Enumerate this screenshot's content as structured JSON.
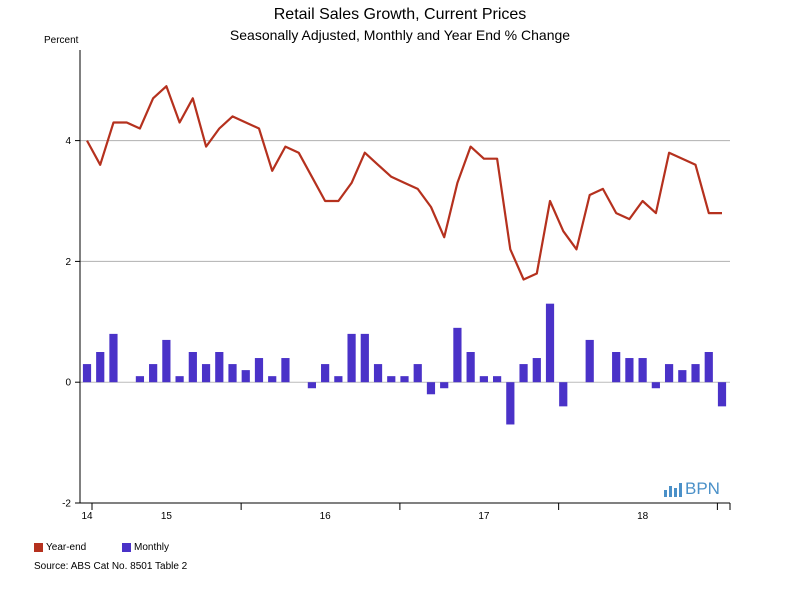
{
  "chart_data": {
    "type": "bar+line",
    "title": "Retail Sales Growth, Current Prices",
    "subtitle": "Seasonally Adjusted, Monthly and Year End % Change",
    "ylabel": "Percent",
    "ylim": [
      -2,
      5.5
    ],
    "yticks": [
      -2,
      0,
      2,
      4
    ],
    "xtick_labels": [
      "14",
      "15",
      "16",
      "17",
      "18"
    ],
    "grid": true,
    "legend_position": "bottom-left",
    "series": [
      {
        "name": "Year-end",
        "type": "line",
        "color": "#b5311e",
        "values": [
          4.0,
          3.6,
          4.3,
          4.3,
          4.2,
          4.7,
          4.9,
          4.3,
          4.7,
          3.9,
          4.2,
          4.4,
          4.3,
          4.2,
          3.5,
          3.9,
          3.8,
          3.4,
          3.0,
          3.0,
          3.3,
          3.8,
          3.6,
          3.4,
          3.3,
          3.2,
          2.9,
          2.4,
          3.3,
          3.9,
          3.7,
          3.7,
          2.2,
          1.7,
          1.8,
          3.0,
          2.5,
          2.2,
          3.1,
          3.2,
          2.8,
          2.7,
          3.0,
          2.8,
          3.8,
          3.7,
          3.6,
          2.8,
          2.8
        ]
      },
      {
        "name": "Monthly",
        "type": "bar",
        "color": "#4a32c8",
        "values": [
          0.3,
          0.5,
          0.8,
          0.0,
          0.1,
          0.3,
          0.7,
          0.1,
          0.5,
          0.3,
          0.5,
          0.3,
          0.2,
          0.4,
          0.1,
          0.4,
          0.0,
          -0.1,
          0.3,
          0.1,
          0.8,
          0.8,
          0.3,
          0.1,
          0.1,
          0.3,
          -0.2,
          -0.1,
          0.9,
          0.5,
          0.1,
          0.1,
          -0.7,
          0.3,
          0.4,
          1.3,
          -0.4,
          0.0,
          0.7,
          0.0,
          0.5,
          0.4,
          0.4,
          -0.1,
          0.3,
          0.2,
          0.3,
          0.5,
          -0.4
        ]
      }
    ]
  },
  "legend": {
    "yearend_label": "Year-end",
    "monthly_label": "Monthly"
  },
  "source": "Source: ABS Cat No. 8501 Table 2",
  "logo_text": "BPN"
}
